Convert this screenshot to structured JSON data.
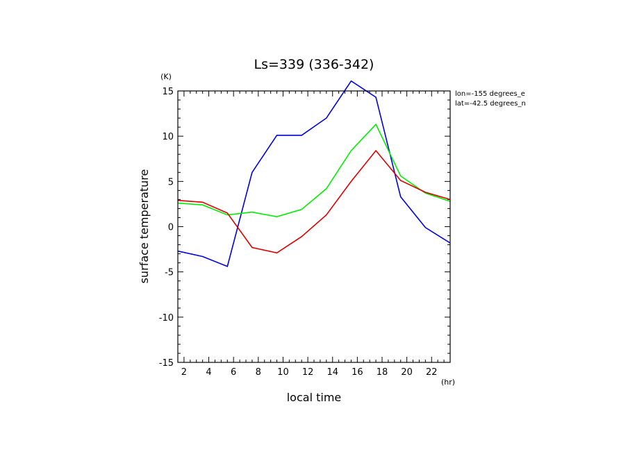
{
  "chart_data": {
    "type": "line",
    "title": "Ls=339 (336-342)",
    "xlabel": "local time",
    "ylabel": "surface temperature",
    "x_unit": "(hr)",
    "y_unit": "(K)",
    "xlim": [
      1.5,
      23.5
    ],
    "ylim": [
      -15,
      15
    ],
    "xticks": [
      2,
      4,
      6,
      8,
      10,
      12,
      14,
      16,
      18,
      20,
      22
    ],
    "yticks": [
      -15,
      -10,
      -5,
      0,
      5,
      10,
      15
    ],
    "grid": false,
    "annotations": [
      "lon=-155 degrees_e",
      "lat=-42.5 degrees_n"
    ],
    "x": [
      1.5,
      3.5,
      5.5,
      7.5,
      9.5,
      11.5,
      13.5,
      15.5,
      17.5,
      19.5,
      21.5,
      23.5
    ],
    "series": [
      {
        "color": "#0000dd",
        "values": [
          -2.7,
          -3.3,
          -4.4,
          6.0,
          10.1,
          10.1,
          12.0,
          16.1,
          14.3,
          3.3,
          -0.1,
          -1.8
        ]
      },
      {
        "color": "#00ee00",
        "values": [
          2.6,
          2.4,
          1.3,
          1.6,
          1.1,
          1.9,
          4.2,
          8.4,
          11.3,
          5.6,
          3.7,
          2.8
        ]
      },
      {
        "color": "#dd0000",
        "values": [
          2.9,
          2.7,
          1.5,
          -2.3,
          -2.9,
          -1.1,
          1.3,
          5.0,
          8.4,
          5.1,
          3.8,
          3.0
        ]
      }
    ]
  }
}
